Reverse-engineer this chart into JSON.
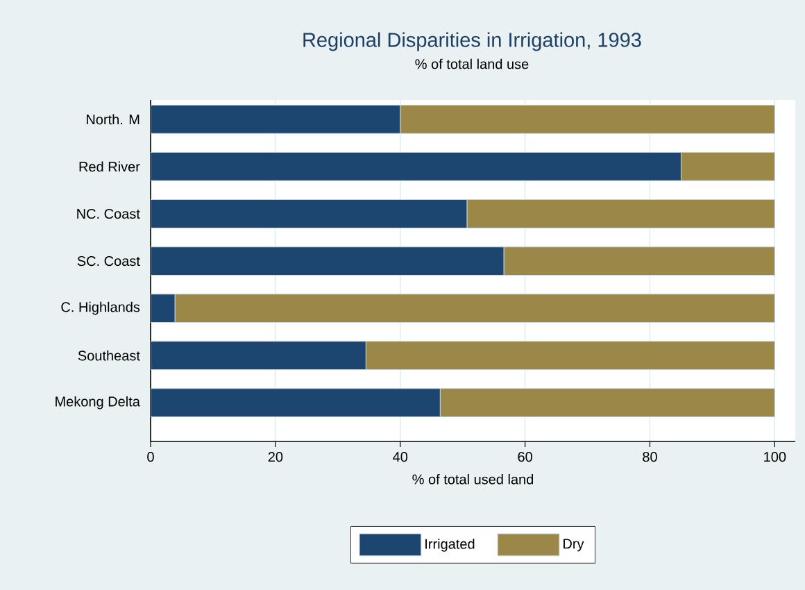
{
  "chart_data": {
    "type": "bar",
    "orientation": "horizontal",
    "stacked": true,
    "title": "Regional Disparities in Irrigation, 1993",
    "subtitle": "% of total land use",
    "xlabel": "% of total used land",
    "categories": [
      "North. M",
      "Red River",
      "NC. Coast",
      "SC. Coast",
      "C. Highlands",
      "Southeast",
      "Mekong Delta"
    ],
    "series": [
      {
        "name": "Irrigated",
        "color": "#1c4670",
        "values": [
          40.0,
          85.0,
          50.7,
          56.6,
          3.9,
          34.5,
          46.4
        ]
      },
      {
        "name": "Dry",
        "color": "#9b8747",
        "values": [
          60.0,
          15.0,
          49.3,
          43.4,
          96.1,
          65.5,
          53.6
        ]
      }
    ],
    "xlim": [
      0,
      103.3
    ],
    "xticks": [
      0,
      20,
      40,
      60,
      80,
      100
    ],
    "grid": "x",
    "legend": "bottom"
  }
}
